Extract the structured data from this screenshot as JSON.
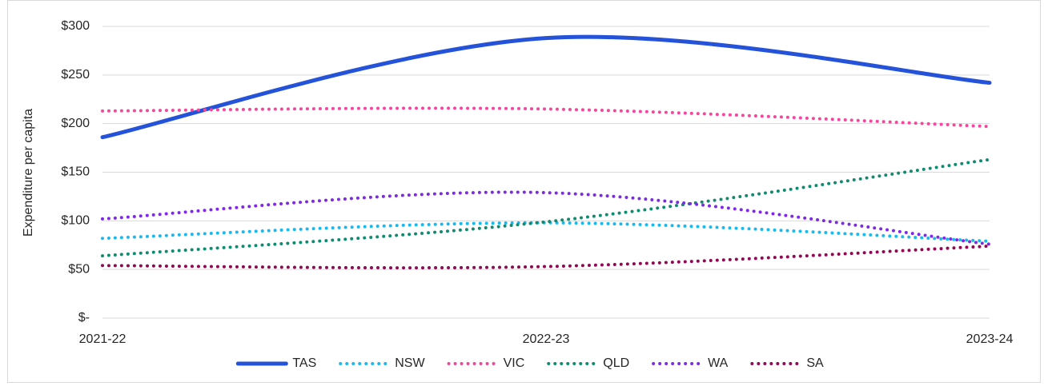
{
  "chart_data": {
    "type": "line",
    "y_label": "Expenditure per capita",
    "categories": [
      "2021-22",
      "2022-23",
      "2023-24"
    ],
    "series": [
      {
        "name": "TAS",
        "color": "#2453d9",
        "style": "solid",
        "values": [
          186,
          288,
          242
        ]
      },
      {
        "name": "NSW",
        "color": "#1fb7ea",
        "style": "dotted",
        "values": [
          82,
          98,
          79
        ]
      },
      {
        "name": "VIC",
        "color": "#f2479a",
        "style": "dotted",
        "values": [
          213,
          215,
          197
        ]
      },
      {
        "name": "QLD",
        "color": "#128a6e",
        "style": "dotted",
        "values": [
          64,
          99,
          163
        ]
      },
      {
        "name": "WA",
        "color": "#7d2ae8",
        "style": "dotted",
        "values": [
          102,
          129,
          76
        ]
      },
      {
        "name": "SA",
        "color": "#8b0a50",
        "style": "dotted",
        "values": [
          54,
          53,
          74
        ]
      }
    ],
    "ylim": [
      0,
      300
    ],
    "yticks": [
      {
        "value": 0,
        "label": "$-"
      },
      {
        "value": 50,
        "label": "$50"
      },
      {
        "value": 100,
        "label": "$100"
      },
      {
        "value": 150,
        "label": "$150"
      },
      {
        "value": 200,
        "label": "$200"
      },
      {
        "value": 250,
        "label": "$250"
      },
      {
        "value": 300,
        "label": "$300"
      }
    ],
    "grid": true,
    "smooth": true,
    "legend": "bottom"
  }
}
